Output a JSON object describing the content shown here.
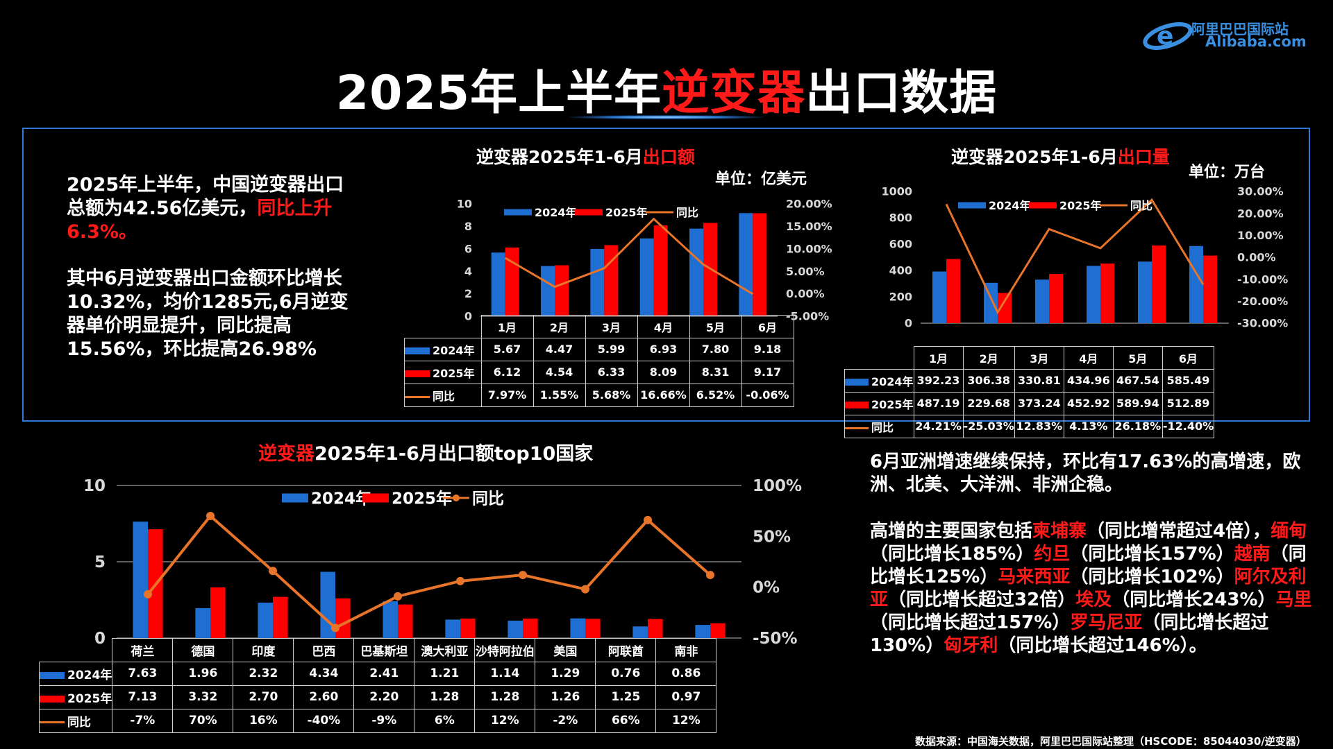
{
  "title": {
    "part1": "2025年上半年",
    "highlight": "逆变器",
    "part2": "出口数据"
  },
  "logo": {
    "line1": "阿里巴巴国际站",
    "line2": "Alibaba.com"
  },
  "summary": {
    "p1_a": "2025年上半年，中国逆变器出口总额为42.56亿美元，",
    "p1_b": "同比上升6.3%。",
    "p2": "其中6月逆变器出口金额环比增长10.32%，均价1285元,6月逆变器单价明显提升，同比提高15.56%，环比提高26.98%"
  },
  "right_text": {
    "p1": "6月亚洲增速继续保持，环比有17.63%的高增速，欧洲、北美、大洋洲、非洲企稳。",
    "p2_segments": [
      {
        "t": "高增的主要国家包括",
        "red": false
      },
      {
        "t": "柬埔寨",
        "red": true
      },
      {
        "t": "（同比增常超过4倍），",
        "red": false
      },
      {
        "t": "缅甸",
        "red": true
      },
      {
        "t": "（同比增长185%）",
        "red": false
      },
      {
        "t": "约旦",
        "red": true
      },
      {
        "t": "（同比增长157%）",
        "red": false
      },
      {
        "t": "越南",
        "red": true
      },
      {
        "t": "（同比增长125%）",
        "red": false
      },
      {
        "t": "马来西亚",
        "red": true
      },
      {
        "t": "（同比增长102%）",
        "red": false
      },
      {
        "t": "阿尔及利亚",
        "red": true
      },
      {
        "t": "（同比增长超过32倍）",
        "red": false
      },
      {
        "t": "埃及",
        "red": true
      },
      {
        "t": "（同比增长243%）",
        "red": false
      },
      {
        "t": "马里",
        "red": true
      },
      {
        "t": "（同比增长超过157%）",
        "red": false
      },
      {
        "t": "罗马尼亚",
        "red": true
      },
      {
        "t": "（同比增长超过130%）",
        "red": false
      },
      {
        "t": "匈牙利",
        "red": true
      },
      {
        "t": "（同比增长超过146%）。",
        "red": false
      }
    ]
  },
  "source": "数据来源：中国海关数据，阿里巴巴国际站整理（HSCODE：85044030/逆变器）",
  "colors": {
    "s2024": "#1e6fd1",
    "s2025": "#ff0000",
    "yoy": "#e8742a",
    "accent_red": "#ff1a1a",
    "panel_border": "#2a7ad8"
  },
  "chart_data": [
    {
      "id": "value",
      "type": "bar",
      "title_a": "逆变器2025年1-6月",
      "title_b": "出口额",
      "unit": "单位：亿美元",
      "categories": [
        "1月",
        "2月",
        "3月",
        "4月",
        "5月",
        "6月"
      ],
      "series": [
        {
          "name": "2024年",
          "values": [
            5.67,
            4.47,
            5.99,
            6.93,
            7.8,
            9.18
          ]
        },
        {
          "name": "2025年",
          "values": [
            6.12,
            4.54,
            6.33,
            8.09,
            8.31,
            9.17
          ]
        },
        {
          "name": "同比",
          "type": "line",
          "axis": "right",
          "values": [
            7.97,
            1.55,
            5.68,
            16.66,
            6.52,
            -0.06
          ],
          "labels": [
            "7.97%",
            "1.55%",
            "5.68%",
            "16.66%",
            "6.52%",
            "-0.06%"
          ]
        }
      ],
      "ylim": [
        0,
        10
      ],
      "yticks": [
        0,
        2,
        4,
        6,
        8,
        10
      ],
      "y2lim": [
        -5,
        20
      ],
      "y2ticks": [
        "20.00%",
        "15.00%",
        "10.00%",
        "5.00%",
        "0.00%",
        "-5.00%"
      ],
      "legend": "top"
    },
    {
      "id": "volume",
      "type": "bar",
      "title_a": "逆变器2025年1-6月",
      "title_b": "出口量",
      "unit": "单位：万台",
      "categories": [
        "1月",
        "2月",
        "3月",
        "4月",
        "5月",
        "6月"
      ],
      "series": [
        {
          "name": "2024年",
          "values": [
            392.23,
            306.38,
            330.81,
            434.96,
            467.54,
            585.49
          ]
        },
        {
          "name": "2025年",
          "values": [
            487.19,
            229.68,
            373.24,
            452.92,
            589.94,
            512.89
          ]
        },
        {
          "name": "同比",
          "type": "line",
          "axis": "right",
          "values": [
            24.21,
            -25.03,
            12.83,
            4.13,
            26.18,
            -12.4
          ],
          "labels": [
            "24.21%",
            "-25.03%",
            "12.83%",
            "4.13%",
            "26.18%",
            "-12.40%"
          ]
        }
      ],
      "ylim": [
        0,
        1000
      ],
      "yticks": [
        0,
        200,
        400,
        600,
        800,
        1000
      ],
      "y2lim": [
        -30,
        30
      ],
      "y2ticks": [
        "30.00%",
        "20.00%",
        "10.00%",
        "0.00%",
        "-10.00%",
        "-20.00%",
        "-30.00%"
      ],
      "legend": "top"
    },
    {
      "id": "top10",
      "type": "bar",
      "title_a": "逆变器",
      "title_b": "2025年1-6月出口额top10国家",
      "categories": [
        "荷兰",
        "德国",
        "印度",
        "巴西",
        "巴基斯坦",
        "澳大利亚",
        "沙特阿拉伯",
        "美国",
        "阿联酋",
        "南非"
      ],
      "series": [
        {
          "name": "2024年",
          "values": [
            7.63,
            1.96,
            2.32,
            4.34,
            2.41,
            1.21,
            1.14,
            1.29,
            0.76,
            0.86
          ]
        },
        {
          "name": "2025年",
          "values": [
            7.13,
            3.32,
            2.7,
            2.6,
            2.2,
            1.28,
            1.28,
            1.26,
            1.25,
            0.97
          ]
        },
        {
          "name": "同比",
          "type": "line",
          "axis": "right",
          "values": [
            -7,
            70,
            16,
            -40,
            -9,
            6,
            12,
            -2,
            66,
            12
          ],
          "labels": [
            "-7%",
            "70%",
            "16%",
            "-40%",
            "-9%",
            "6%",
            "12%",
            "-2%",
            "66%",
            "12%"
          ]
        }
      ],
      "ylim": [
        0,
        10
      ],
      "yticks": [
        0,
        5,
        10
      ],
      "y2lim": [
        -50,
        100
      ],
      "y2ticks": [
        "100%",
        "50%",
        "0%",
        "-50%"
      ],
      "grid": true,
      "legend": "top"
    }
  ]
}
